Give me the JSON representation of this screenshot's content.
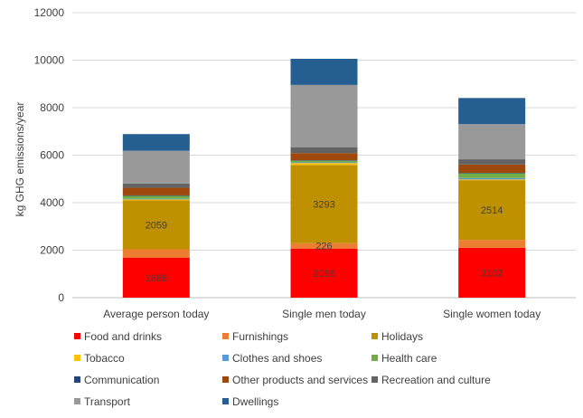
{
  "chart_data": {
    "type": "bar",
    "stacked": true,
    "title": "",
    "xlabel": "",
    "ylabel": "kg GHG emissions/year",
    "ylim": [
      0,
      12000
    ],
    "yticks": [
      0,
      2000,
      4000,
      6000,
      8000,
      10000,
      12000
    ],
    "ytick_labels": [
      "0",
      "2000",
      "4000",
      "6000",
      "8000",
      "10000",
      "12000"
    ],
    "grid": true,
    "legend_position": "bottom",
    "categories": [
      "Average person today",
      "Single men today",
      "Single women today"
    ],
    "series": [
      {
        "name": "Food and drinks",
        "color": "#ff0000",
        "values": [
          1688,
          2068,
          2102
        ],
        "labels": [
          "1688",
          "2068",
          "2102"
        ]
      },
      {
        "name": "Furnishings",
        "color": "#ed7d31",
        "values": [
          350,
          226,
          330
        ],
        "labels": [
          "",
          "226",
          ""
        ]
      },
      {
        "name": "Holidays",
        "color": "#bf9000",
        "values": [
          2059,
          3293,
          2514
        ],
        "labels": [
          "2059",
          "3293",
          "2514"
        ]
      },
      {
        "name": "Tobacco",
        "color": "#ffc000",
        "values": [
          40,
          80,
          30
        ],
        "labels": [
          "",
          "",
          ""
        ]
      },
      {
        "name": "Clothes and shoes",
        "color": "#5b9bd5",
        "values": [
          30,
          30,
          60
        ],
        "labels": [
          "",
          "",
          ""
        ]
      },
      {
        "name": "Health care",
        "color": "#70ad47",
        "values": [
          120,
          70,
          200
        ],
        "labels": [
          "",
          "",
          ""
        ]
      },
      {
        "name": "Communication",
        "color": "#264478",
        "values": [
          20,
          20,
          20
        ],
        "labels": [
          "",
          "",
          ""
        ]
      },
      {
        "name": "Other products and services",
        "color": "#9e480e",
        "values": [
          320,
          300,
          350
        ],
        "labels": [
          "",
          "",
          ""
        ]
      },
      {
        "name": "Recreation and culture",
        "color": "#636363",
        "values": [
          180,
          250,
          220
        ],
        "labels": [
          "",
          "",
          ""
        ]
      },
      {
        "name": "Transport",
        "color": "#999999",
        "values": [
          1380,
          2620,
          1480
        ],
        "labels": [
          "",
          "",
          ""
        ]
      },
      {
        "name": "Dwellings",
        "color": "#255e91",
        "values": [
          700,
          1100,
          1100
        ],
        "labels": [
          "",
          "",
          ""
        ]
      }
    ]
  }
}
